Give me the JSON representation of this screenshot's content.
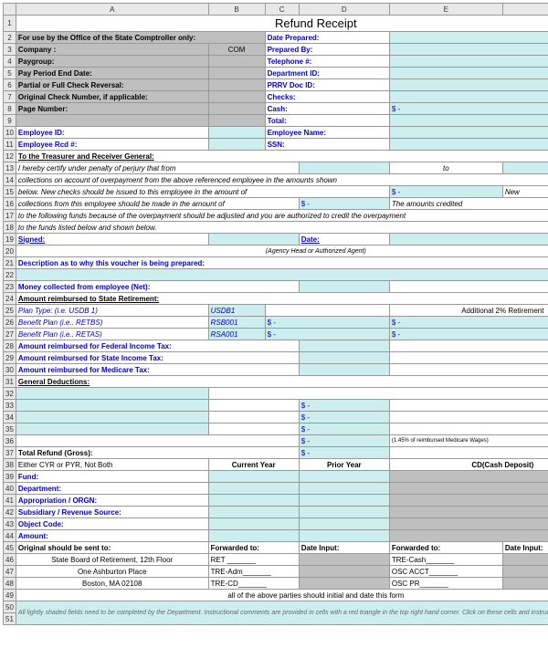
{
  "title": "Refund Receipt",
  "cols": [
    "",
    "A",
    "B",
    "C",
    "D",
    "E",
    "F"
  ],
  "left": {
    "r2": "For use by the Office of the State Comptroller only:",
    "r3": "Company :",
    "r3v": "COM",
    "r4": "Paygroup:",
    "r5": "Pay Period End Date:",
    "r6": "Partial or Full Check Reversal:",
    "r7": "Original Check Number, if applicable:",
    "r8": "Page Number:"
  },
  "right": {
    "r2": "Date Prepared:",
    "r3": "Prepared By:",
    "r4": "Telephone #:",
    "r5": "Department ID:",
    "r6": "PRRV Doc ID:",
    "r7": "Checks:",
    "r8": "Cash:",
    "r8v": "$                         -",
    "r9": "Total:"
  },
  "emp": {
    "id": "Employee ID:",
    "rcd": "Employee Rcd #:",
    "name": "Employee Name:",
    "ssn": "SSN:"
  },
  "treasurer": "To the Treasurer and Receiver General:",
  "certify": {
    "l1a": "I hereby certify under penalty of perjury that from",
    "l1b": "to",
    "l2": "collections on account of overpayment from the above referenced employee in the amounts shown",
    "l3a": "below.  New checks should be issued to this employee in the amount of",
    "l3b": "$                         -",
    "l3c": "New",
    "l4a": "collections from this employee should be made in the amount of",
    "l4b": "$                -",
    "l4c": "The amounts credited",
    "l5": "to the following funds because of the overpayment should be adjusted and you are authorized to credit the overpayment",
    "l6": "to the funds listed below and shown below.",
    "signed": "Signed:",
    "date": "Date:",
    "agency": "(Agency Head or Authorized Agent)"
  },
  "desc": "Description as to why this voucher is being prepared:",
  "money": "Money collected from employee (Net):",
  "retire": "Amount reimbursed to State Retirement:",
  "plan": {
    "r25a": "Plan Type:  (i.e.  USDB 1)",
    "r25b": "USDB1",
    "r25c": "Additional 2% Retirement",
    "r26a": "Benefit Plan (i.e.. RETBS)",
    "r26b": "RSB001",
    "r27a": "Benefit Plan (i.e.. RETAS)",
    "r27b": "RSA001"
  },
  "tax": {
    "fed": "Amount reimbursed for Federal Income Tax:",
    "state": "Amount reimbursed for State Income Tax:",
    "med": "Amount reimbursed for Medicare Tax:"
  },
  "deduct": "General Deductions:",
  "medNote": "(1.45% of reimbursed Medicare Wages)",
  "total": "Total Refund (Gross):",
  "dollar": "$                -",
  "cypyr": {
    "hdr": "Either CYR or PYR, Not Both",
    "cy": "Current Year",
    "py": "Prior Year",
    "cd": "CD(Cash Deposit)",
    "rows": [
      "Fund:",
      "Department:",
      "Appropriation / ORGN:",
      "Subsidiary / Revenue Source:",
      "Object Code:",
      "Amount:"
    ]
  },
  "orig": {
    "hdr": "Original should be sent to:",
    "fwd1": "Forwarded to:",
    "di": "Date Input:",
    "fwd2": "Forwarded to:",
    "addr": [
      "State Board of Retirement, 12th Floor",
      "One Ashburton Place",
      "Boston, MA  02108"
    ],
    "f1": [
      "RET _______",
      "TRE-Adm_______",
      "TRE-CD_______"
    ],
    "f2": [
      "TRE-Cash_______",
      "OSC ACCT_______",
      "OSC PR_______"
    ],
    "foot": "all of the above parties should initial and date this form"
  },
  "bottom": "All lightly shaded fields need to be completed by the Department. Instructional comments are provided in cells with a red triangle in the top right hand corner.  Click on these cells and instructions will be displayed."
}
